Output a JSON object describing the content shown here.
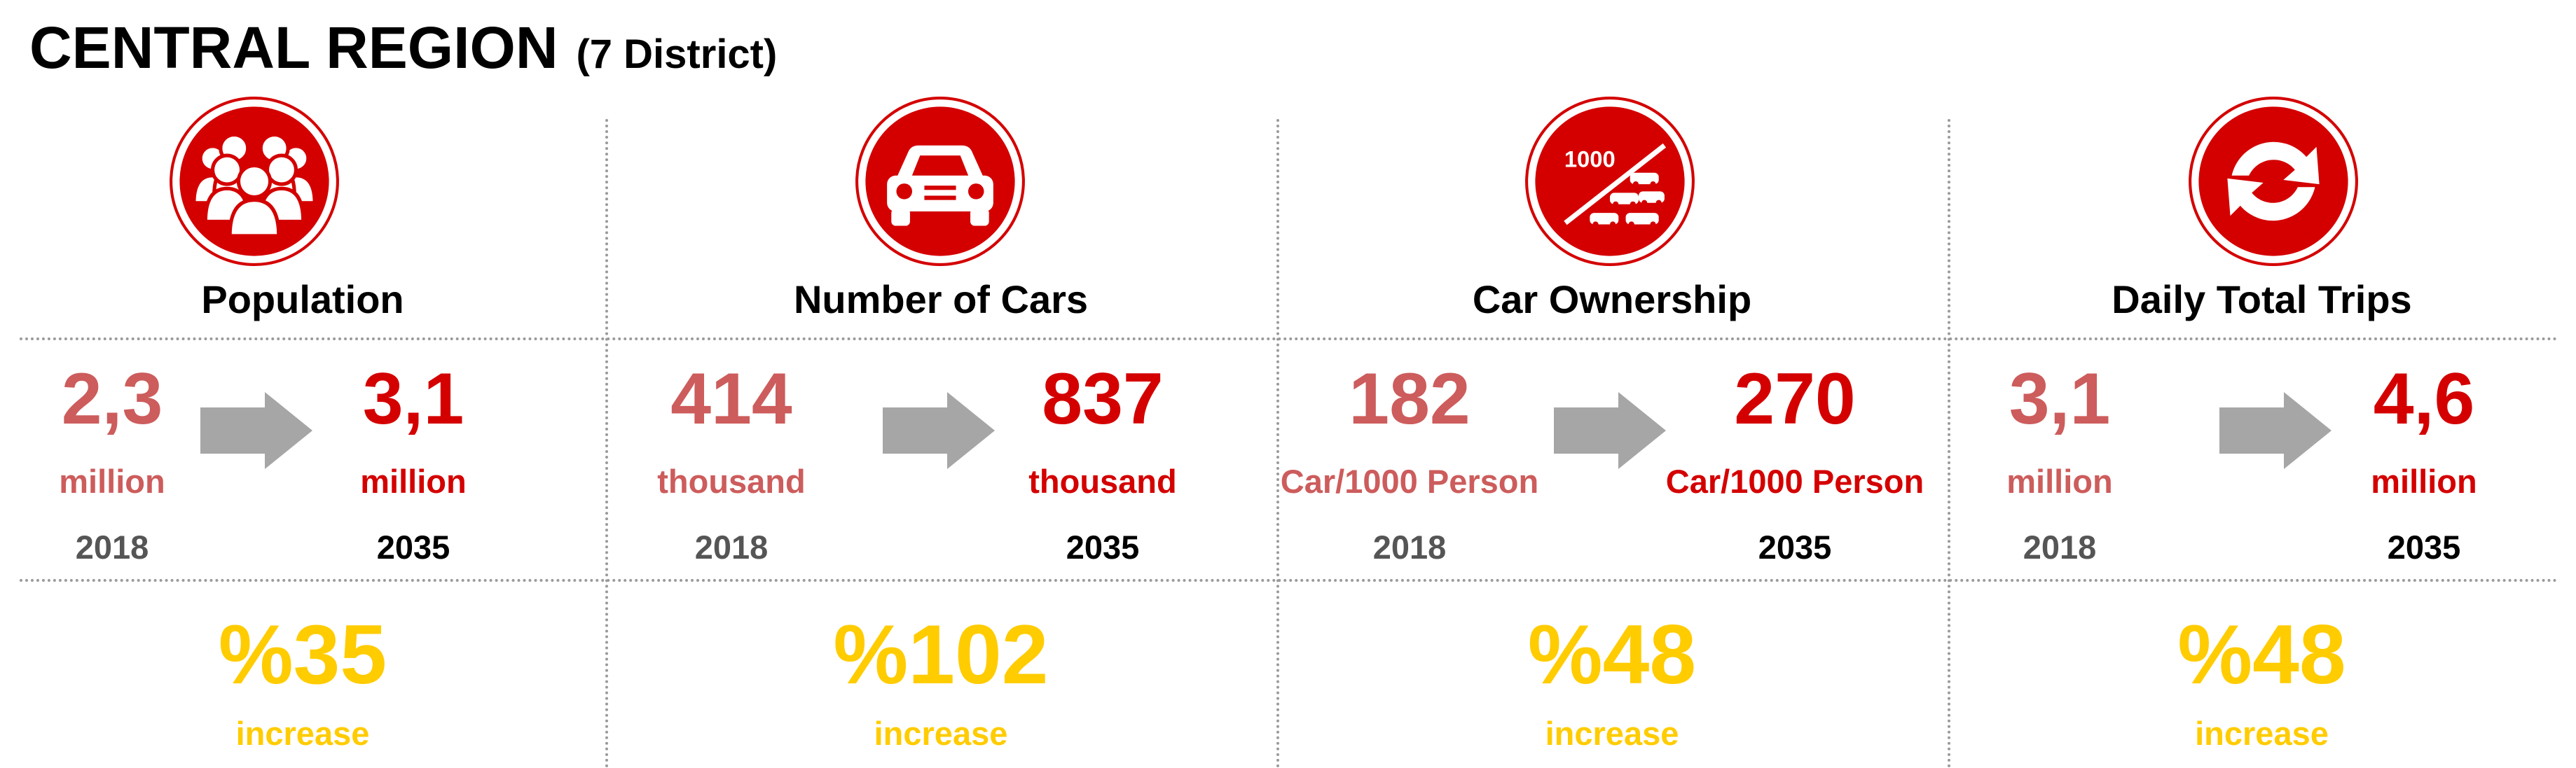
{
  "header": {
    "title": "CENTRAL REGION",
    "subtitle": "(7 District)"
  },
  "colors": {
    "red": "#d40000",
    "faded_red": "#cd5c5c",
    "yellow": "#ffcc00",
    "grey": "#a6a6a6"
  },
  "columns": [
    {
      "category": "Population",
      "icon": "people-group-icon",
      "from_value": "2,3",
      "from_unit": "million",
      "from_year": "2018",
      "to_value": "3,1",
      "to_unit": "million",
      "to_year": "2035",
      "change": "%35",
      "change_label": "increase"
    },
    {
      "category": "Number of Cars",
      "icon": "car-icon",
      "from_value": "414",
      "from_unit": "thousand",
      "from_year": "2018",
      "to_value": "837",
      "to_unit": "thousand",
      "to_year": "2035",
      "change": "%102",
      "change_label": "increase"
    },
    {
      "category": "Car Ownership",
      "icon": "car-ownership-icon",
      "icon_text": "1000",
      "from_value": "182",
      "from_unit": "Car/1000 Person",
      "from_year": "2018",
      "to_value": "270",
      "to_unit": "Car/1000 Person",
      "to_year": "2035",
      "change": "%48",
      "change_label": "increase"
    },
    {
      "category": "Daily Total Trips",
      "icon": "circular-arrows-icon",
      "from_value": "3,1",
      "from_unit": "million",
      "from_year": "2018",
      "to_value": "4,6",
      "to_unit": "million",
      "to_year": "2035",
      "change": "%48",
      "change_label": "increase"
    }
  ]
}
